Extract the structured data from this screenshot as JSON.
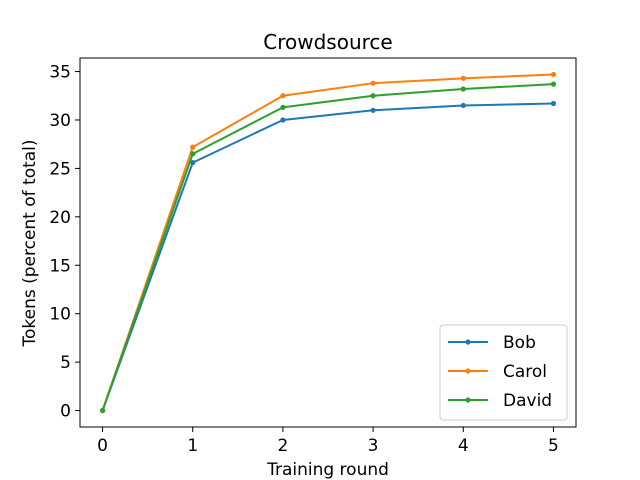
{
  "chart_data": {
    "type": "line",
    "title": "Crowdsource",
    "xlabel": "Training round",
    "ylabel": "Tokens (percent of total)",
    "x": [
      0,
      1,
      2,
      3,
      4,
      5
    ],
    "xlim": [
      -0.25,
      5.25
    ],
    "ylim": [
      -1.7,
      36.4
    ],
    "xticks": [
      "0",
      "1",
      "2",
      "3",
      "4",
      "5"
    ],
    "yticks": [
      "0",
      "5",
      "10",
      "15",
      "20",
      "25",
      "30",
      "35"
    ],
    "grid": false,
    "legend_position": "lower right",
    "series": [
      {
        "name": "Bob",
        "color": "#1f77b4",
        "values": [
          0,
          25.6,
          30.0,
          31.0,
          31.5,
          31.7
        ]
      },
      {
        "name": "Carol",
        "color": "#ff7f0e",
        "values": [
          0,
          27.2,
          32.5,
          33.8,
          34.3,
          34.7
        ]
      },
      {
        "name": "David",
        "color": "#2ca02c",
        "values": [
          0,
          26.5,
          31.3,
          32.5,
          33.2,
          33.7
        ]
      }
    ]
  }
}
